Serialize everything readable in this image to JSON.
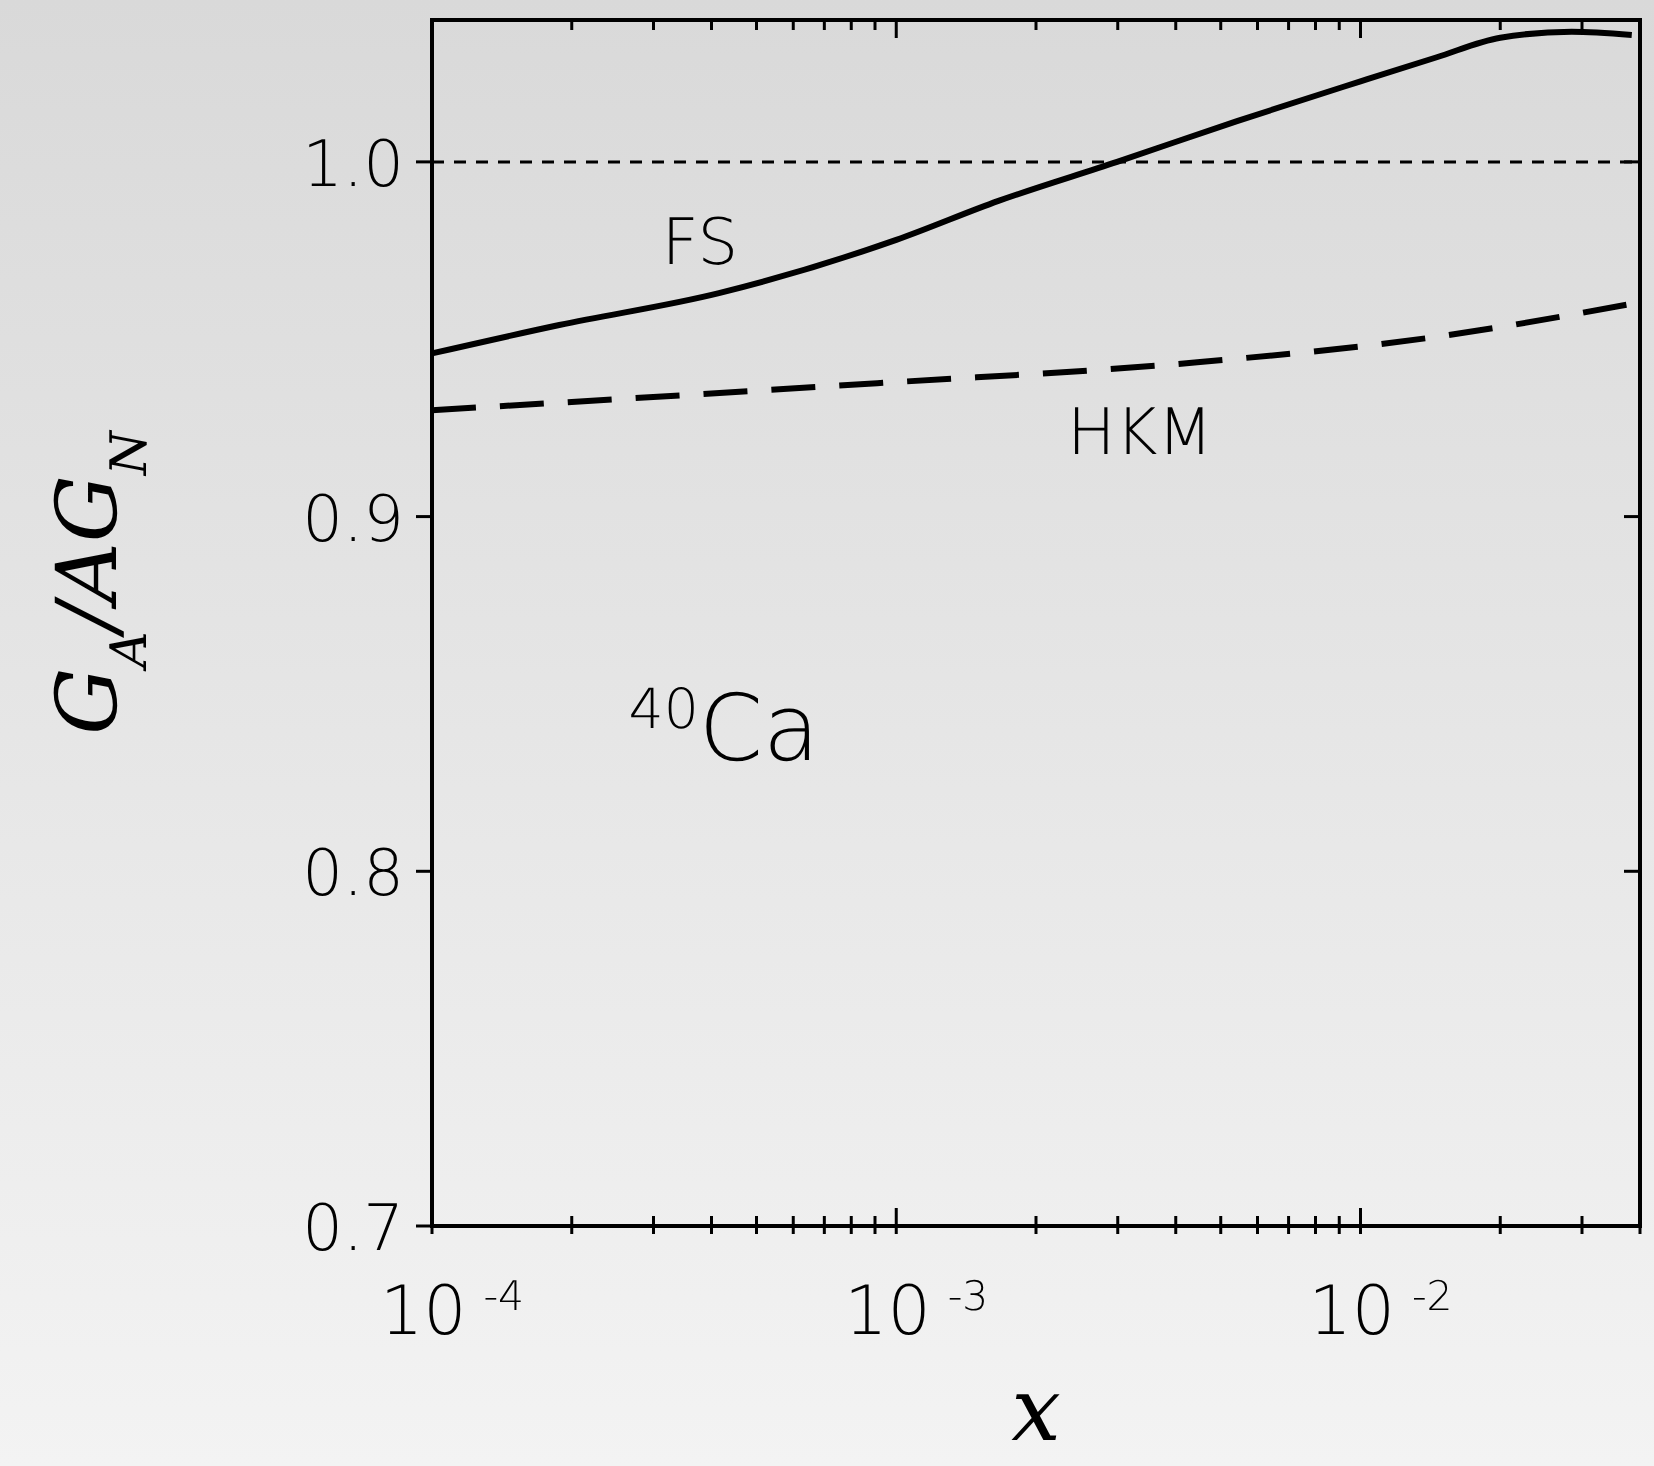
{
  "chart_data": {
    "type": "line",
    "xlabel": "x",
    "ylabel": "G$_{A}$/AG$_{N}$",
    "log": "x",
    "xlim": [
      0.0001,
      0.04
    ],
    "ylim": [
      0.7,
      1.04
    ],
    "xticks": [
      {
        "value": 0.0001,
        "label": "10$^{-4}$"
      },
      {
        "value": 0.0002,
        "label": null
      },
      {
        "value": 0.0003,
        "label": null
      },
      {
        "value": 0.0004,
        "label": null
      },
      {
        "value": 0.0005,
        "label": null
      },
      {
        "value": 0.0006,
        "label": null
      },
      {
        "value": 0.0007,
        "label": null
      },
      {
        "value": 0.0008,
        "label": null
      },
      {
        "value": 0.0009,
        "label": null
      },
      {
        "value": 0.001,
        "label": "10$^{-3}$"
      },
      {
        "value": 0.002,
        "label": null
      },
      {
        "value": 0.003,
        "label": null
      },
      {
        "value": 0.004,
        "label": null
      },
      {
        "value": 0.005,
        "label": null
      },
      {
        "value": 0.006,
        "label": null
      },
      {
        "value": 0.007,
        "label": null
      },
      {
        "value": 0.008,
        "label": null
      },
      {
        "value": 0.009,
        "label": null
      },
      {
        "value": 0.01,
        "label": "10$^{-2}$"
      },
      {
        "value": 0.02,
        "label": null
      },
      {
        "value": 0.03,
        "label": null
      },
      {
        "value": 0.04,
        "label": null
      }
    ],
    "yticks": [
      0.7,
      0.8,
      0.9,
      {
        "value": 1.0,
        "label": "1.0"
      }
    ],
    "grid": false,
    "marker": "none",
    "series": [
      {
        "color": "#000000",
        "line_style": "solid",
        "x": [
          0.0001,
          0.000188,
          0.000415,
          0.001,
          0.00166,
          0.00299,
          0.00542,
          0.01,
          0.0146,
          0.02,
          0.0285,
          0.0384
        ],
        "values": [
          0.946,
          0.954,
          0.963,
          0.978,
          0.989,
          1.0,
          1.0115,
          1.0227,
          1.0295,
          1.035,
          1.0367,
          1.0358
        ]
      },
      {
        "color": "#000000",
        "line_style": "dashed",
        "x": [
          0.0001,
          0.00091,
          0.00445,
          0.0146,
          0.0384
        ],
        "values": [
          0.93,
          0.9376,
          0.9435,
          0.9507,
          0.96
        ]
      }
    ],
    "ref_lines": [
      {
        "axis": "y",
        "value": 1.0,
        "line_style": "dotted",
        "color": "#000000"
      }
    ],
    "annotations": [
      "FS",
      "HKM",
      "$^{40}$Ca"
    ]
  }
}
